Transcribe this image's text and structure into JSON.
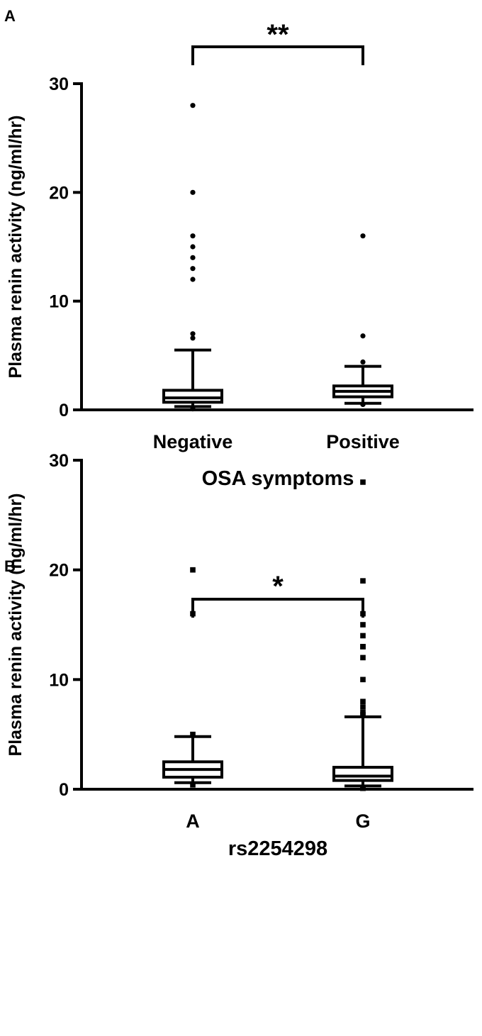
{
  "chart_data": [
    {
      "type": "box",
      "panel_label": "A",
      "ylabel": "Plasma renin activity (ng/ml/hr)",
      "xlabel": "OSA symptoms",
      "ylim": [
        0,
        30
      ],
      "yticks": [
        0,
        10,
        20,
        30
      ],
      "categories": [
        "Negative",
        "Positive"
      ],
      "significance": "**",
      "boxes": [
        {
          "name": "Negative",
          "whisker_low": 0.3,
          "q1": 0.7,
          "median": 1.1,
          "q3": 1.8,
          "whisker_high": 5.5,
          "outliers": [
            28,
            20,
            16,
            15,
            14,
            13,
            12,
            7,
            6.6,
            0.1,
            0.1,
            0.1,
            0.1,
            0.1
          ]
        },
        {
          "name": "Positive",
          "whisker_low": 0.6,
          "q1": 1.2,
          "median": 1.7,
          "q3": 2.2,
          "whisker_high": 4.0,
          "outliers": [
            16,
            6.8,
            4.4,
            0.5,
            0.5
          ]
        }
      ]
    },
    {
      "type": "box",
      "panel_label": "B",
      "ylabel": "Plasma renin activity (ng/ml/hr)",
      "xlabel": "rs2254298",
      "ylim": [
        0,
        30
      ],
      "yticks": [
        0,
        10,
        20,
        30
      ],
      "categories": [
        "A",
        "G"
      ],
      "significance": "*",
      "boxes": [
        {
          "name": "A",
          "whisker_low": 0.6,
          "q1": 1.1,
          "median": 1.8,
          "q3": 2.5,
          "whisker_high": 4.8,
          "outliers": [
            20,
            16,
            5.0,
            0.4
          ]
        },
        {
          "name": "G",
          "whisker_low": 0.3,
          "q1": 0.8,
          "median": 1.2,
          "q3": 2.0,
          "whisker_high": 6.6,
          "outliers": [
            28,
            19,
            16,
            15,
            14,
            13,
            13,
            12,
            10,
            8,
            7.5,
            7,
            6.8,
            0.1,
            0.1,
            0.1,
            0.1,
            0.1,
            0.1
          ]
        }
      ]
    }
  ]
}
